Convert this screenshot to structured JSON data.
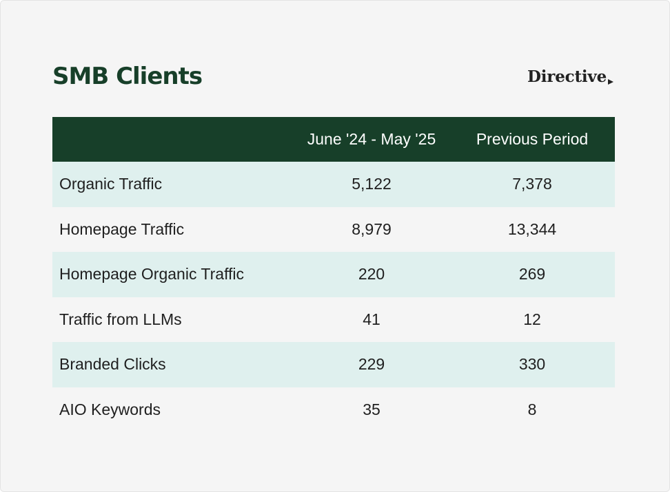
{
  "page": {
    "title": "SMB Clients",
    "brand": "Directive"
  },
  "chart_data": {
    "type": "table",
    "title": "SMB Clients",
    "columns": [
      "",
      "June '24 - May '25",
      "Previous Period"
    ],
    "rows": [
      {
        "label": "Organic Traffic",
        "current": "5,122",
        "previous": "7,378"
      },
      {
        "label": "Homepage Traffic",
        "current": "8,979",
        "previous": "13,344"
      },
      {
        "label": "Homepage Organic Traffic",
        "current": "220",
        "previous": "269"
      },
      {
        "label": "Traffic from LLMs",
        "current": "41",
        "previous": "12"
      },
      {
        "label": "Branded Clicks",
        "current": "229",
        "previous": "330"
      },
      {
        "label": "AIO Keywords",
        "current": "35",
        "previous": "8"
      }
    ]
  },
  "colors": {
    "header_bg": "#173f29",
    "title": "#173f29",
    "shaded_row": "#dff0ee",
    "card_bg": "#f5f5f5"
  },
  "icons": {
    "brand_mark": "play-triangle-icon"
  }
}
